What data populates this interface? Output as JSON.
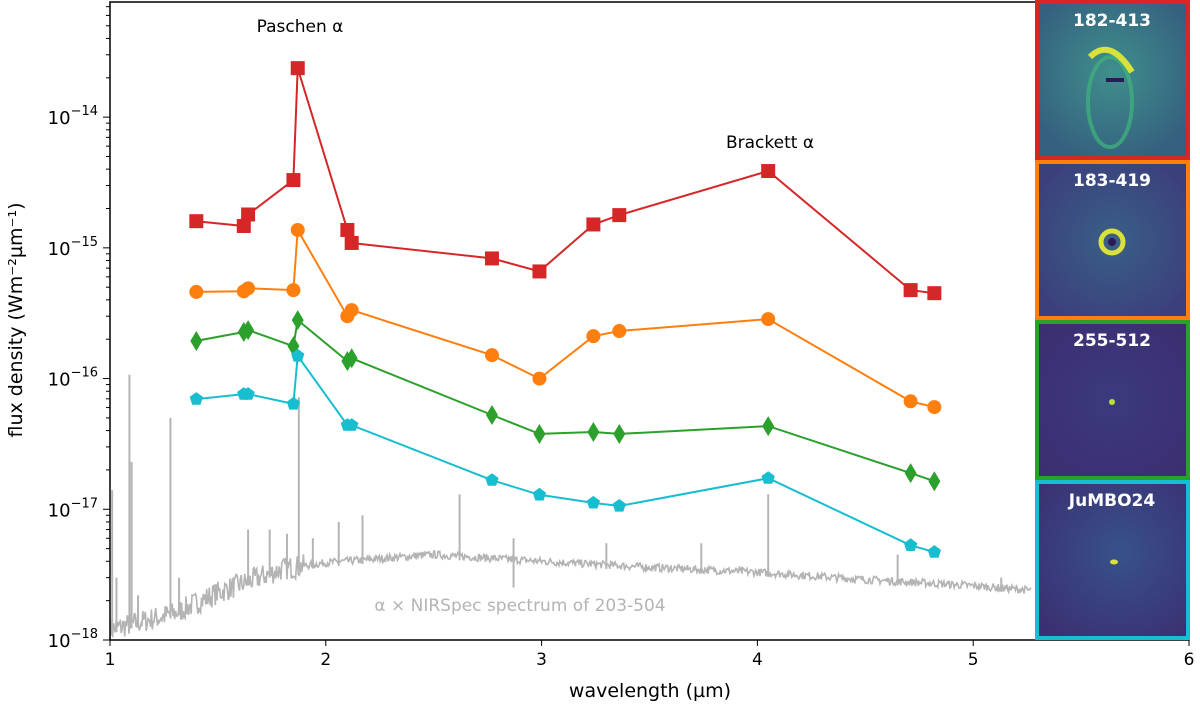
{
  "chart_data": {
    "type": "line",
    "xlabel": "wavelength (µm)",
    "ylabel": "flux density (Wm⁻²µm⁻¹)",
    "xlim": [
      1,
      6
    ],
    "ylim": [
      1e-18,
      7.6e-14
    ],
    "yscale": "log",
    "grid": false,
    "xticks": [
      1,
      2,
      3,
      4,
      5,
      6
    ],
    "yticks": [
      {
        "value": 1e-18,
        "base": "10",
        "exp": "−18"
      },
      {
        "value": 1e-17,
        "base": "10",
        "exp": "−17"
      },
      {
        "value": 1e-16,
        "base": "10",
        "exp": "−16"
      },
      {
        "value": 1e-15,
        "base": "10",
        "exp": "−15"
      },
      {
        "value": 1e-14,
        "base": "10",
        "exp": "−14"
      }
    ],
    "x": [
      1.4,
      1.62,
      1.64,
      1.85,
      1.87,
      2.1,
      2.12,
      2.77,
      2.99,
      3.24,
      3.36,
      4.05,
      4.71,
      4.82
    ],
    "series": [
      {
        "name": "182-413",
        "color": "#d62728",
        "marker": "square",
        "values": [
          1.6e-15,
          1.47e-15,
          1.8e-15,
          3.3e-15,
          2.37e-14,
          1.37e-15,
          1.09e-15,
          8.3e-16,
          6.6e-16,
          1.51e-15,
          1.78e-15,
          3.87e-15,
          4.75e-16,
          4.5e-16
        ]
      },
      {
        "name": "183-419",
        "color": "#ff7f0e",
        "marker": "circle",
        "values": [
          4.6e-16,
          4.65e-16,
          4.9e-16,
          4.75e-16,
          1.37e-15,
          3e-16,
          3.34e-16,
          1.51e-16,
          1e-16,
          2.11e-16,
          2.31e-16,
          2.85e-16,
          6.7e-17,
          6.05e-17
        ]
      },
      {
        "name": "255-512",
        "color": "#2ca02c",
        "marker": "diamond",
        "values": [
          1.94e-16,
          2.27e-16,
          2.35e-16,
          1.77e-16,
          2.8e-16,
          1.36e-16,
          1.43e-16,
          5.26e-17,
          3.77e-17,
          3.9e-17,
          3.77e-17,
          4.33e-17,
          1.89e-17,
          1.64e-17
        ]
      },
      {
        "name": "JuMBO24",
        "color": "#17becf",
        "marker": "pentagon",
        "values": [
          6.97e-17,
          7.6e-17,
          7.6e-17,
          6.4e-17,
          1.49e-16,
          4.4e-17,
          4.4e-17,
          1.67e-17,
          1.29e-17,
          1.12e-17,
          1.06e-17,
          1.73e-17,
          5.3e-18,
          4.7e-18
        ]
      }
    ],
    "spectrum": {
      "label": "α × NIRSpec spectrum of 203-504",
      "color": "#b4b4b4",
      "continuum_x": [
        1.0,
        1.3,
        1.5,
        1.8,
        2.0,
        2.5,
        3.0,
        3.5,
        4.0,
        4.5,
        5.0,
        5.27
      ],
      "continuum_y": [
        1.2e-18,
        1.6e-18,
        2.3e-18,
        3.5e-18,
        3.9e-18,
        4.5e-18,
        4e-18,
        3.6e-18,
        3.3e-18,
        2.9e-18,
        2.6e-18,
        2.4e-18
      ],
      "lines_x": [
        1.01,
        1.03,
        1.09,
        1.1,
        1.13,
        1.28,
        1.32,
        1.64,
        1.74,
        1.82,
        1.875,
        1.94,
        2.06,
        2.17,
        2.62,
        2.87,
        3.3,
        3.74,
        4.05,
        4.65,
        5.13
      ],
      "lines_y": [
        1.4e-17,
        3e-18,
        1.07e-16,
        2.3e-17,
        2.2e-18,
        5e-17,
        3e-18,
        7e-18,
        7e-18,
        6.5e-18,
        7.2e-17,
        6e-18,
        8e-18,
        9e-18,
        1.3e-17,
        6e-18,
        5.5e-18,
        5.5e-18,
        1.3e-17,
        4.5e-18,
        3e-18
      ]
    },
    "annotations": [
      {
        "text": "Paschen α",
        "x": 1.87,
        "y": 4.5e-14
      },
      {
        "text": "Brackett α",
        "x": 4.05,
        "y": 7.5e-15
      }
    ],
    "insets": [
      {
        "label": "182-413",
        "border": "#d62728"
      },
      {
        "label": "183-419",
        "border": "#ff7f0e"
      },
      {
        "label": "255-512",
        "border": "#2ca02c"
      },
      {
        "label": "JuMBO24",
        "border": "#17becf"
      }
    ]
  }
}
